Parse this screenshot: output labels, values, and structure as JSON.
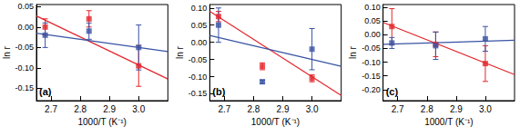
{
  "chart_data": [
    {
      "type": "scatter",
      "annotation": "(a)",
      "x_label": "1000/T (K⁻¹)",
      "y_label": "ln r",
      "xlim": [
        2.65,
        3.1
      ],
      "xticks": [
        2.7,
        2.8,
        2.9,
        {
          "value": 3,
          "label": "3.0"
        }
      ],
      "ylim": [
        -0.18,
        0.055
      ],
      "yticks": [
        -0.15,
        {
          "value": -0.1,
          "label": "-0.10"
        },
        -0.05,
        {
          "value": 0,
          "label": "0.00"
        },
        0.05
      ],
      "series": [
        {
          "type": "line",
          "color": "#e3262b",
          "line_style": "solid",
          "x": [
            2.65,
            3.1
          ],
          "values": [
            0.027,
            -0.127
          ]
        },
        {
          "type": "line",
          "color": "#3853a4",
          "line_style": "solid",
          "x": [
            2.65,
            3.1
          ],
          "values": [
            -0.015,
            -0.06
          ]
        },
        {
          "type": "scatter",
          "color": "#e3262b",
          "marker": "square",
          "x": [
            2.68,
            2.83,
            3.0
          ],
          "values": [
            0.0,
            0.02,
            -0.095
          ],
          "errors": [
            0.02,
            0.02,
            0.05
          ]
        },
        {
          "type": "scatter",
          "color": "#3853a4",
          "marker": "square",
          "x": [
            2.68,
            2.83,
            3.0
          ],
          "values": [
            -0.02,
            -0.01,
            -0.05
          ],
          "errors": [
            0.03,
            0.02,
            0.055
          ]
        }
      ]
    },
    {
      "type": "scatter",
      "annotation": "(b)",
      "x_label": "1000/T (K⁻¹)",
      "y_label": "ln r",
      "xlim": [
        2.65,
        3.1
      ],
      "xticks": [
        2.7,
        2.8,
        2.9,
        {
          "value": 3,
          "label": "3.0"
        }
      ],
      "ylim": [
        -0.17,
        0.11
      ],
      "yticks": [
        -0.15,
        {
          "value": -0.1,
          "label": "-0.10"
        },
        -0.05,
        {
          "value": 0,
          "label": "0.00"
        },
        0.05,
        {
          "value": 0.1,
          "label": "0.10"
        }
      ],
      "series": [
        {
          "type": "line",
          "color": "#e3262b",
          "line_style": "solid",
          "x": [
            2.65,
            3.1
          ],
          "values": [
            0.09,
            -0.155
          ]
        },
        {
          "type": "line",
          "color": "#3853a4",
          "line_style": "solid",
          "x": [
            2.65,
            3.1
          ],
          "values": [
            0.02,
            -0.07
          ]
        },
        {
          "type": "scatter",
          "color": "#e3262b",
          "marker": "square",
          "x": [
            2.68,
            2.83,
            3.0
          ],
          "values": [
            0.075,
            -0.07,
            -0.105
          ],
          "errors": [
            0.015,
            0.01,
            0.01
          ]
        },
        {
          "type": "scatter",
          "color": "#3853a4",
          "marker": "square",
          "x": [
            2.68,
            2.83,
            3.0
          ],
          "values": [
            0.05,
            -0.115,
            -0.02
          ],
          "errors": [
            0.05,
            0.005,
            0.06
          ]
        }
      ]
    },
    {
      "type": "scatter",
      "annotation": "(c)",
      "x_label": "1000/T (K⁻¹)",
      "y_label": "ln r",
      "xlim": [
        2.65,
        3.1
      ],
      "xticks": [
        2.7,
        2.8,
        2.9,
        {
          "value": 3,
          "label": "3.0"
        }
      ],
      "ylim": [
        -0.24,
        0.11
      ],
      "yticks": [
        {
          "value": -0.2,
          "label": "-0.20"
        },
        -0.15,
        {
          "value": -0.1,
          "label": "-0.10"
        },
        -0.05,
        {
          "value": 0,
          "label": "0.00"
        },
        0.05,
        {
          "value": 0.1,
          "label": "0.10"
        }
      ],
      "series": [
        {
          "type": "line",
          "color": "#e3262b",
          "line_style": "solid",
          "x": [
            2.65,
            3.1
          ],
          "values": [
            0.045,
            -0.145
          ]
        },
        {
          "type": "line",
          "color": "#3853a4",
          "line_style": "solid",
          "x": [
            2.65,
            3.1
          ],
          "values": [
            -0.035,
            -0.02
          ]
        },
        {
          "type": "scatter",
          "color": "#e3262b",
          "marker": "square",
          "x": [
            2.68,
            2.83,
            3.0
          ],
          "values": [
            0.03,
            -0.035,
            -0.105
          ],
          "errors": [
            0.065,
            0.045,
            0.065
          ]
        },
        {
          "type": "scatter",
          "color": "#3853a4",
          "marker": "square",
          "x": [
            2.68,
            2.83,
            3.0
          ],
          "values": [
            -0.03,
            -0.04,
            -0.015
          ],
          "errors": [
            0.02,
            0.05,
            0.045
          ]
        }
      ]
    }
  ]
}
